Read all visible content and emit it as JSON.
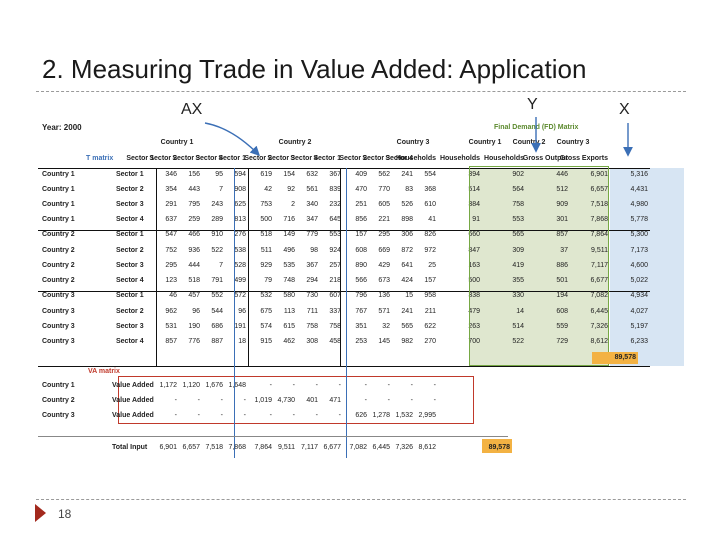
{
  "slide": {
    "title": "2. Measuring Trade in Value Added: Application",
    "labels": {
      "ax": "AX",
      "y": "Y",
      "x": "X"
    },
    "page_number": "18"
  },
  "table": {
    "year": "Year: 2000",
    "fd_title": "Final Demand (FD) Matrix",
    "t_title": "T matrix",
    "va_title": "VA matrix",
    "total_fd": "89,578",
    "header_countries": [
      "Country 1",
      "Country 2",
      "Country 3",
      "Country 1",
      "Country 2",
      "Country 3"
    ],
    "header_sub": [
      "T matrix",
      "Sector 1",
      "Sector 2",
      "Sector 3",
      "Sector 4",
      "Sector 1",
      "Sector 2",
      "Sector 3",
      "Sector 4",
      "Sector 1",
      "Sector 2",
      "Sector 3",
      "Sector 4",
      "Households",
      "Households",
      "Households",
      "Gross Output",
      "Gross Exports"
    ],
    "rows": [
      {
        "country": "Country 1",
        "sector": "Sector 1",
        "vals": [
          "346",
          "156",
          "95",
          "594",
          "619",
          "154",
          "632",
          "367",
          "409",
          "562",
          "241",
          "554",
          "394",
          "902",
          "446",
          "6,901",
          "5,316"
        ]
      },
      {
        "country": "Country 1",
        "sector": "Sector 2",
        "vals": [
          "354",
          "443",
          "7",
          "908",
          "42",
          "92",
          "561",
          "839",
          "470",
          "770",
          "83",
          "368",
          "514",
          "564",
          "512",
          "6,657",
          "4,431"
        ]
      },
      {
        "country": "Country 1",
        "sector": "Sector 3",
        "vals": [
          "291",
          "795",
          "243",
          "625",
          "753",
          "2",
          "340",
          "232",
          "251",
          "605",
          "526",
          "610",
          "384",
          "758",
          "909",
          "7,518",
          "4,980"
        ]
      },
      {
        "country": "Country 1",
        "sector": "Sector 4",
        "vals": [
          "637",
          "259",
          "289",
          "813",
          "500",
          "716",
          "347",
          "645",
          "856",
          "221",
          "898",
          "41",
          "91",
          "553",
          "301",
          "7,868",
          "5,778"
        ]
      },
      {
        "country": "Country 2",
        "sector": "Sector 1",
        "vals": [
          "547",
          "466",
          "910",
          "276",
          "518",
          "149",
          "779",
          "553",
          "157",
          "295",
          "306",
          "826",
          "660",
          "565",
          "857",
          "7,864",
          "5,300"
        ]
      },
      {
        "country": "Country 2",
        "sector": "Sector 2",
        "vals": [
          "752",
          "936",
          "522",
          "538",
          "511",
          "496",
          "98",
          "924",
          "608",
          "669",
          "872",
          "972",
          "847",
          "309",
          "37",
          "9,511",
          "7,173"
        ]
      },
      {
        "country": "Country 2",
        "sector": "Sector 3",
        "vals": [
          "295",
          "444",
          "7",
          "528",
          "929",
          "535",
          "367",
          "257",
          "890",
          "429",
          "641",
          "25",
          "163",
          "419",
          "886",
          "7,117",
          "4,600"
        ]
      },
      {
        "country": "Country 2",
        "sector": "Sector 4",
        "vals": [
          "123",
          "518",
          "791",
          "499",
          "79",
          "748",
          "294",
          "218",
          "566",
          "673",
          "424",
          "157",
          "500",
          "355",
          "501",
          "6,677",
          "5,022"
        ]
      },
      {
        "country": "Country 3",
        "sector": "Sector 1",
        "vals": [
          "46",
          "457",
          "552",
          "572",
          "532",
          "580",
          "730",
          "607",
          "796",
          "136",
          "15",
          "958",
          "338",
          "330",
          "194",
          "7,082",
          "4,934"
        ]
      },
      {
        "country": "Country 3",
        "sector": "Sector 2",
        "vals": [
          "962",
          "96",
          "544",
          "96",
          "675",
          "113",
          "711",
          "337",
          "767",
          "571",
          "241",
          "211",
          "479",
          "14",
          "608",
          "6,445",
          "4,027"
        ]
      },
      {
        "country": "Country 3",
        "sector": "Sector 3",
        "vals": [
          "531",
          "190",
          "686",
          "191",
          "574",
          "615",
          "758",
          "758",
          "351",
          "32",
          "565",
          "622",
          "263",
          "514",
          "559",
          "7,326",
          "5,197"
        ]
      },
      {
        "country": "Country 3",
        "sector": "Sector 4",
        "vals": [
          "857",
          "776",
          "887",
          "18",
          "915",
          "462",
          "308",
          "458",
          "253",
          "145",
          "982",
          "270",
          "700",
          "522",
          "729",
          "8,612",
          "6,233"
        ]
      }
    ],
    "va_rows": [
      {
        "country": "Country 1",
        "label": "Value Added",
        "vals": [
          "1,172",
          "1,120",
          "1,676",
          "1,648",
          "-",
          "-",
          "-",
          "-",
          "-",
          "-",
          "-",
          "-"
        ]
      },
      {
        "country": "Country 2",
        "label": "Value Added",
        "vals": [
          "-",
          "-",
          "-",
          "-",
          "1,019",
          "4,730",
          "401",
          "471",
          "-",
          "-",
          "-",
          "-"
        ]
      },
      {
        "country": "Country 3",
        "label": "Value Added",
        "vals": [
          "-",
          "-",
          "-",
          "-",
          "-",
          "-",
          "-",
          "-",
          "626",
          "1,278",
          "1,532",
          "2,995"
        ]
      }
    ],
    "total_input": {
      "label": "Total Input",
      "vals": [
        "6,901",
        "6,657",
        "7,518",
        "7,868",
        "7,864",
        "9,511",
        "7,117",
        "6,677",
        "7,082",
        "6,445",
        "7,326",
        "8,612"
      ],
      "total": "89,578"
    }
  },
  "colors": {
    "arrow": "#3b6fb6",
    "shade": "#d7e5f3",
    "green_box": "#76a844",
    "red": "#c0392b",
    "highlight": "#f3b243",
    "marker": "#a3291d"
  }
}
